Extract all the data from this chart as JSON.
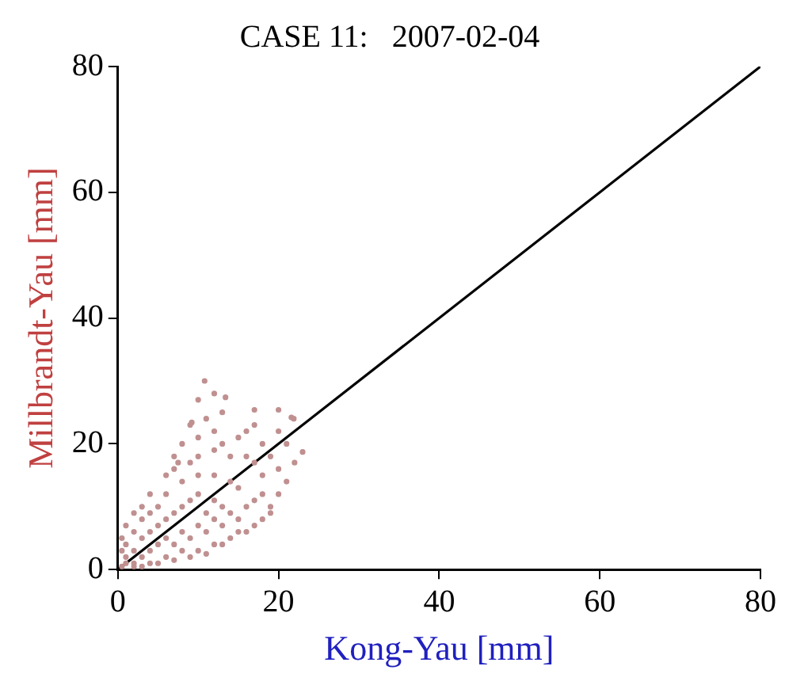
{
  "chart_data": {
    "type": "scatter",
    "title": "CASE 11:   2007-02-04",
    "xlabel": "Kong-Yau [mm]",
    "ylabel": "Millbrandt-Yau [mm]",
    "xlim": [
      0,
      80
    ],
    "ylim": [
      0,
      80
    ],
    "xticks": [
      0,
      20,
      40,
      60,
      80
    ],
    "yticks": [
      0,
      20,
      40,
      60,
      80
    ],
    "grid": false,
    "legend": false,
    "marker": "circle",
    "series": [
      {
        "color": "#c09090",
        "x": [
          0.5,
          1,
          2,
          2,
          3,
          3,
          4,
          4,
          5,
          5,
          6,
          6,
          7,
          7,
          8,
          8,
          9,
          9,
          10,
          10,
          11,
          11,
          12,
          12,
          13,
          13,
          14,
          15,
          16,
          17,
          18,
          15,
          14,
          12,
          10,
          8,
          6,
          5,
          4,
          3,
          2,
          1,
          1,
          2,
          4,
          6,
          8,
          10,
          12,
          14,
          16,
          18,
          19,
          20,
          21,
          22,
          20,
          18,
          19,
          17,
          16,
          14,
          12,
          10,
          9,
          7,
          8,
          10,
          12,
          13,
          15,
          16,
          11,
          9,
          13,
          10,
          10.8,
          12,
          13.4,
          17,
          20,
          21.6,
          21.9,
          7,
          6,
          4,
          3,
          2,
          1,
          0.5,
          0.5,
          3,
          5,
          7,
          9,
          11,
          13,
          15,
          17,
          19,
          21,
          20,
          18,
          17,
          23,
          7.5,
          9.2
        ],
        "values": [
          0.5,
          2,
          1,
          3,
          2,
          5,
          3,
          6,
          4,
          7,
          5,
          8,
          4,
          9,
          6,
          10,
          5,
          11,
          7,
          12,
          6,
          9,
          8,
          11,
          7,
          10,
          9,
          8,
          10,
          11,
          12,
          13,
          14,
          15,
          15,
          14,
          12,
          10,
          9,
          8,
          6,
          4,
          1,
          0.5,
          1,
          2,
          3,
          3,
          4,
          5,
          6,
          8,
          10,
          12,
          14,
          17,
          16,
          15,
          18,
          17,
          18,
          18,
          19,
          18,
          17,
          16,
          20,
          21,
          22,
          20,
          21,
          22,
          24,
          23,
          25,
          27,
          30,
          28,
          27.4,
          25.4,
          25.4,
          24.2,
          24,
          18,
          15,
          12,
          10,
          9,
          7,
          5,
          3,
          0.5,
          1,
          1.5,
          2,
          2.5,
          4,
          6,
          7,
          9,
          20,
          22,
          20,
          23,
          18.7,
          17,
          23.4
        ]
      },
      {
        "type": "line",
        "color": "#000000",
        "x": [
          0,
          80
        ],
        "values": [
          0,
          80
        ],
        "marker": "none"
      }
    ]
  }
}
